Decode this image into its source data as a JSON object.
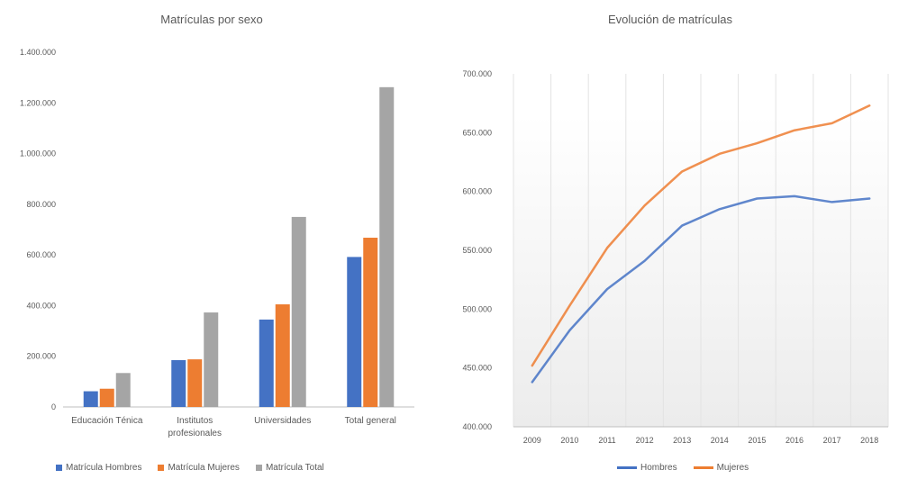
{
  "colors": {
    "hombres": "#4472C4",
    "mujeres": "#ED7D31",
    "total": "#A5A5A5",
    "grid": "#e3e3e3",
    "axis": "#bfbfbf"
  },
  "chart_data": [
    {
      "type": "bar",
      "title": "Matrículas por sexo",
      "categories": [
        "Educación Ténica",
        "Institutos profesionales",
        "Universidades",
        "Total general"
      ],
      "series": [
        {
          "name": "Matrícula Hombres",
          "values": [
            62000,
            185000,
            345000,
            592000
          ]
        },
        {
          "name": "Matrícula Mujeres",
          "values": [
            72000,
            188000,
            405000,
            668000
          ]
        },
        {
          "name": "Matrícula Total",
          "values": [
            134000,
            373000,
            750000,
            1262000
          ]
        }
      ],
      "yticks": [
        "0",
        "200.000",
        "400.000",
        "600.000",
        "800.000",
        "1.000.000",
        "1.200.000",
        "1.400.000"
      ],
      "ylim": [
        0,
        1400000
      ],
      "grid": false,
      "legend": "bottom"
    },
    {
      "type": "line",
      "title": "Evolución de matrículas",
      "x": [
        "2009",
        "2010",
        "2011",
        "2012",
        "2013",
        "2014",
        "2015",
        "2016",
        "2017",
        "2018"
      ],
      "series": [
        {
          "name": "Hombres",
          "values": [
            438000,
            482000,
            517000,
            541000,
            571000,
            585000,
            594000,
            596000,
            591000,
            594000
          ]
        },
        {
          "name": "Mujeres",
          "values": [
            452000,
            503000,
            552000,
            588000,
            617000,
            632000,
            641000,
            652000,
            658000,
            673000
          ]
        }
      ],
      "yticks": [
        "400.000",
        "450.000",
        "500.000",
        "550.000",
        "600.000",
        "650.000",
        "700.000"
      ],
      "ylim": [
        400000,
        700000
      ],
      "grid": true,
      "legend": "bottom"
    }
  ]
}
